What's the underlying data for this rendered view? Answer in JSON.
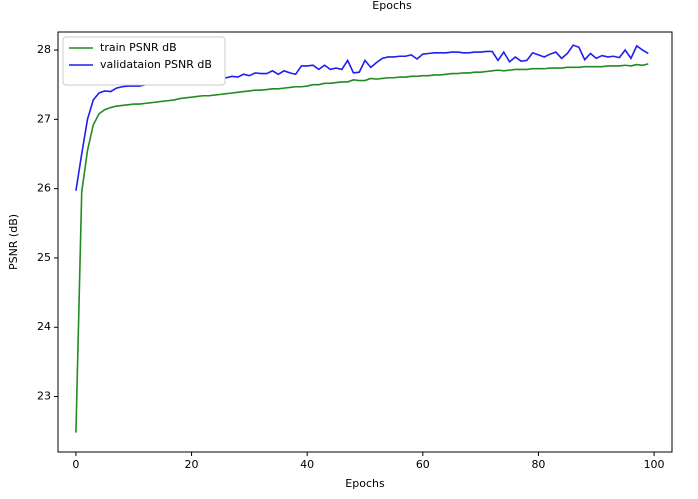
{
  "chart_data": {
    "type": "line",
    "title": "Epochs",
    "xlabel": "Epochs",
    "ylabel": "PSNR (dB)",
    "x": [
      0,
      1,
      2,
      3,
      4,
      5,
      6,
      7,
      8,
      9,
      10,
      11,
      12,
      13,
      14,
      15,
      16,
      17,
      18,
      19,
      20,
      21,
      22,
      23,
      24,
      25,
      26,
      27,
      28,
      29,
      30,
      31,
      32,
      33,
      34,
      35,
      36,
      37,
      38,
      39,
      40,
      41,
      42,
      43,
      44,
      45,
      46,
      47,
      48,
      49,
      50,
      51,
      52,
      53,
      54,
      55,
      56,
      57,
      58,
      59,
      60,
      61,
      62,
      63,
      64,
      65,
      66,
      67,
      68,
      69,
      70,
      71,
      72,
      73,
      74,
      75,
      76,
      77,
      78,
      79,
      80,
      81,
      82,
      83,
      84,
      85,
      86,
      87,
      88,
      89,
      90,
      91,
      92,
      93,
      94,
      95,
      96,
      97,
      98,
      99
    ],
    "series": [
      {
        "name": "train PSNR dB",
        "color": "#228b22",
        "values": [
          22.48,
          25.95,
          26.55,
          26.92,
          27.08,
          27.14,
          27.17,
          27.19,
          27.2,
          27.21,
          27.22,
          27.22,
          27.23,
          27.24,
          27.25,
          27.26,
          27.27,
          27.28,
          27.3,
          27.31,
          27.32,
          27.33,
          27.34,
          27.34,
          27.35,
          27.36,
          27.37,
          27.38,
          27.39,
          27.4,
          27.41,
          27.42,
          27.42,
          27.43,
          27.44,
          27.44,
          27.45,
          27.46,
          27.47,
          27.47,
          27.48,
          27.5,
          27.5,
          27.52,
          27.52,
          27.53,
          27.54,
          27.54,
          27.57,
          27.56,
          27.56,
          27.59,
          27.58,
          27.59,
          27.6,
          27.6,
          27.61,
          27.61,
          27.62,
          27.62,
          27.63,
          27.63,
          27.64,
          27.64,
          27.65,
          27.66,
          27.66,
          27.67,
          27.67,
          27.68,
          27.68,
          27.69,
          27.7,
          27.71,
          27.7,
          27.71,
          27.72,
          27.72,
          27.72,
          27.73,
          27.73,
          27.73,
          27.74,
          27.74,
          27.74,
          27.75,
          27.75,
          27.75,
          27.76,
          27.76,
          27.76,
          27.76,
          27.77,
          27.77,
          27.77,
          27.78,
          27.77,
          27.79,
          27.78,
          27.8
        ]
      },
      {
        "name": "validataion PSNR dB",
        "color": "#1f1fef",
        "values": [
          25.97,
          26.5,
          27.0,
          27.28,
          27.38,
          27.41,
          27.4,
          27.45,
          27.47,
          27.48,
          27.48,
          27.48,
          27.5,
          27.51,
          27.52,
          27.54,
          27.55,
          27.57,
          27.58,
          27.58,
          27.57,
          27.57,
          27.58,
          27.59,
          27.58,
          27.62,
          27.6,
          27.62,
          27.61,
          27.65,
          27.63,
          27.67,
          27.66,
          27.66,
          27.7,
          27.65,
          27.7,
          27.67,
          27.65,
          27.77,
          27.77,
          27.78,
          27.72,
          27.78,
          27.72,
          27.74,
          27.72,
          27.85,
          27.67,
          27.68,
          27.85,
          27.75,
          27.82,
          27.88,
          27.9,
          27.9,
          27.91,
          27.91,
          27.93,
          27.87,
          27.94,
          27.95,
          27.96,
          27.96,
          27.96,
          27.97,
          27.97,
          27.96,
          27.96,
          27.97,
          27.97,
          27.98,
          27.98,
          27.85,
          27.97,
          27.83,
          27.9,
          27.84,
          27.85,
          27.96,
          27.93,
          27.9,
          27.94,
          27.97,
          27.88,
          27.95,
          28.07,
          28.04,
          27.86,
          27.95,
          27.88,
          27.92,
          27.9,
          27.91,
          27.89,
          28.0,
          27.88,
          28.06,
          28.0,
          27.95
        ]
      }
    ],
    "xlim": [
      -3.1,
      103.1
    ],
    "ylim": [
      22.2,
      28.26
    ],
    "xticks": [
      0,
      20,
      40,
      60,
      80,
      100
    ],
    "yticks": [
      23,
      24,
      25,
      26,
      27,
      28
    ],
    "legend": "upper left"
  }
}
